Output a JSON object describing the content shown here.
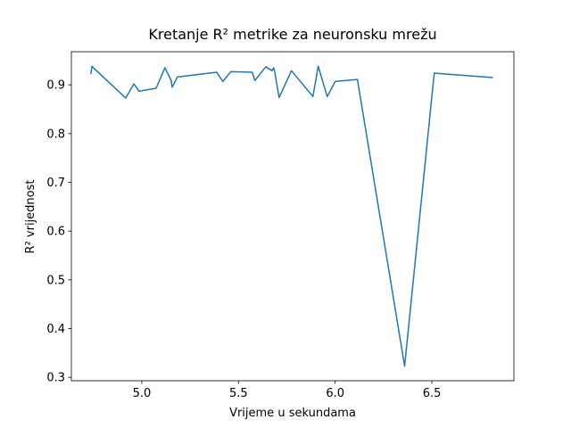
{
  "chart_data": {
    "type": "line",
    "title": "Kretanje R² metrike za neuronsku mrežu",
    "x_label": "Vrijeme u sekundama",
    "y_label": "R² vrijednost",
    "series": [
      {
        "name": "R²",
        "color": "#1f77b4",
        "x": [
          4.737,
          4.742,
          4.917,
          4.959,
          4.986,
          5.074,
          5.12,
          5.152,
          5.157,
          5.184,
          5.387,
          5.419,
          5.461,
          5.571,
          5.585,
          5.641,
          5.673,
          5.682,
          5.687,
          5.71,
          5.774,
          5.885,
          5.912,
          5.959,
          6.0,
          6.115,
          6.359,
          6.512,
          6.816
        ],
        "values": [
          0.922,
          0.938,
          0.873,
          0.902,
          0.887,
          0.893,
          0.935,
          0.909,
          0.895,
          0.916,
          0.926,
          0.907,
          0.927,
          0.926,
          0.909,
          0.937,
          0.929,
          0.935,
          0.927,
          0.874,
          0.929,
          0.876,
          0.938,
          0.876,
          0.907,
          0.911,
          0.323,
          0.924,
          0.915
        ]
      }
    ],
    "xlim": [
      4.636,
      6.924
    ],
    "ylim": [
      0.293,
      0.968
    ],
    "xticks": [
      {
        "value": 5,
        "label": "5.0"
      },
      5.5,
      {
        "value": 6,
        "label": "6.0"
      },
      6.5
    ],
    "yticks": [
      0.3,
      0.4,
      0.5,
      0.6,
      0.7,
      0.8,
      0.9
    ]
  }
}
